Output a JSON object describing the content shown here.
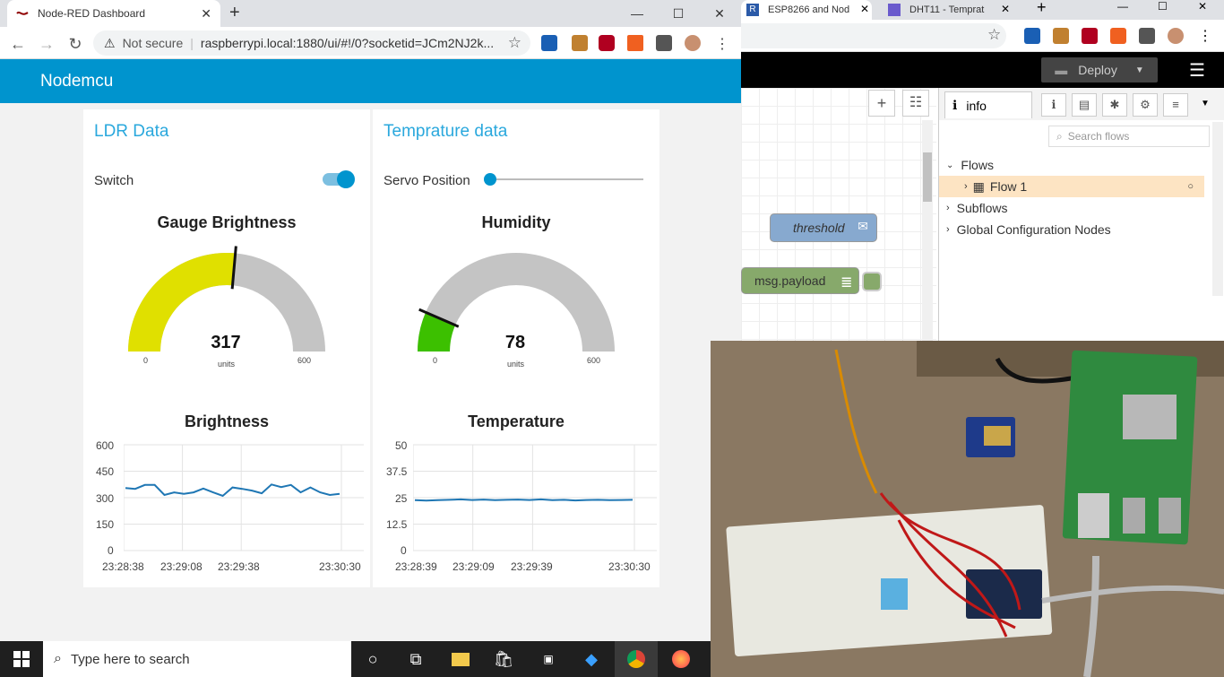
{
  "left_browser": {
    "tab_title": "Node-RED Dashboard",
    "new_tab": "+",
    "url_security": "Not secure",
    "url": "raspberrypi.local:1880/ui/#!/0?socketid=JCm2NJ2k..."
  },
  "dashboard": {
    "title": "Nodemcu",
    "ldr": {
      "group_title": "LDR Data",
      "switch_label": "Switch",
      "switch_on": true,
      "gauge": {
        "title": "Gauge Brightness",
        "value": "317",
        "min": "0",
        "max": "600",
        "units": "units",
        "fraction": 0.528,
        "color": "#e0e000"
      },
      "chart": {
        "title": "Brightness",
        "y_ticks": [
          "600",
          "450",
          "300",
          "150",
          "0"
        ],
        "x_ticks": [
          "23:28:38",
          "23:29:08",
          "23:29:38",
          "23:30:30"
        ]
      }
    },
    "temp": {
      "group_title": "Temprature data",
      "servo_label": "Servo Position",
      "servo_fraction": 0.0,
      "gauge": {
        "title": "Humidity",
        "value": "78",
        "min": "0",
        "max": "600",
        "units": "units",
        "fraction": 0.13,
        "color": "#3cc000"
      },
      "chart": {
        "title": "Temperature",
        "y_ticks": [
          "50",
          "37.5",
          "25",
          "12.5",
          "0"
        ],
        "x_ticks": [
          "23:28:39",
          "23:29:09",
          "23:29:39",
          "23:30:30"
        ]
      }
    }
  },
  "chart_data": [
    {
      "type": "line",
      "title": "Brightness",
      "ylim": [
        0,
        600
      ],
      "series": [
        {
          "values": [
            355,
            350,
            372,
            372,
            315,
            330,
            322,
            330,
            352,
            330,
            310,
            358,
            350,
            340,
            325,
            375,
            360,
            372,
            330,
            358,
            330,
            315,
            322
          ]
        }
      ]
    },
    {
      "type": "line",
      "title": "Temperature",
      "ylim": [
        0,
        50
      ],
      "series": [
        {
          "values": [
            23.8,
            23.6,
            23.8,
            24.0,
            24.2,
            23.9,
            24.1,
            23.8,
            24.0,
            24.1,
            23.9,
            24.2,
            23.8,
            24.0,
            23.7,
            23.9,
            24.0,
            23.8,
            23.9,
            24.0
          ]
        }
      ]
    }
  ],
  "right_browser": {
    "tab1_title": "ESP8266 and Nod",
    "tab2_title": "DHT11 - Temprat",
    "deploy_label": "Deploy",
    "node_threshold": "threshold",
    "node_payload": "msg.payload",
    "sidebar_tab": "info",
    "search_placeholder": "Search flows",
    "tree": {
      "flows": "Flows",
      "flow1": "Flow 1",
      "subflows": "Subflows",
      "global": "Global Configuration Nodes"
    }
  },
  "taskbar": {
    "search_placeholder": "Type here to search"
  }
}
